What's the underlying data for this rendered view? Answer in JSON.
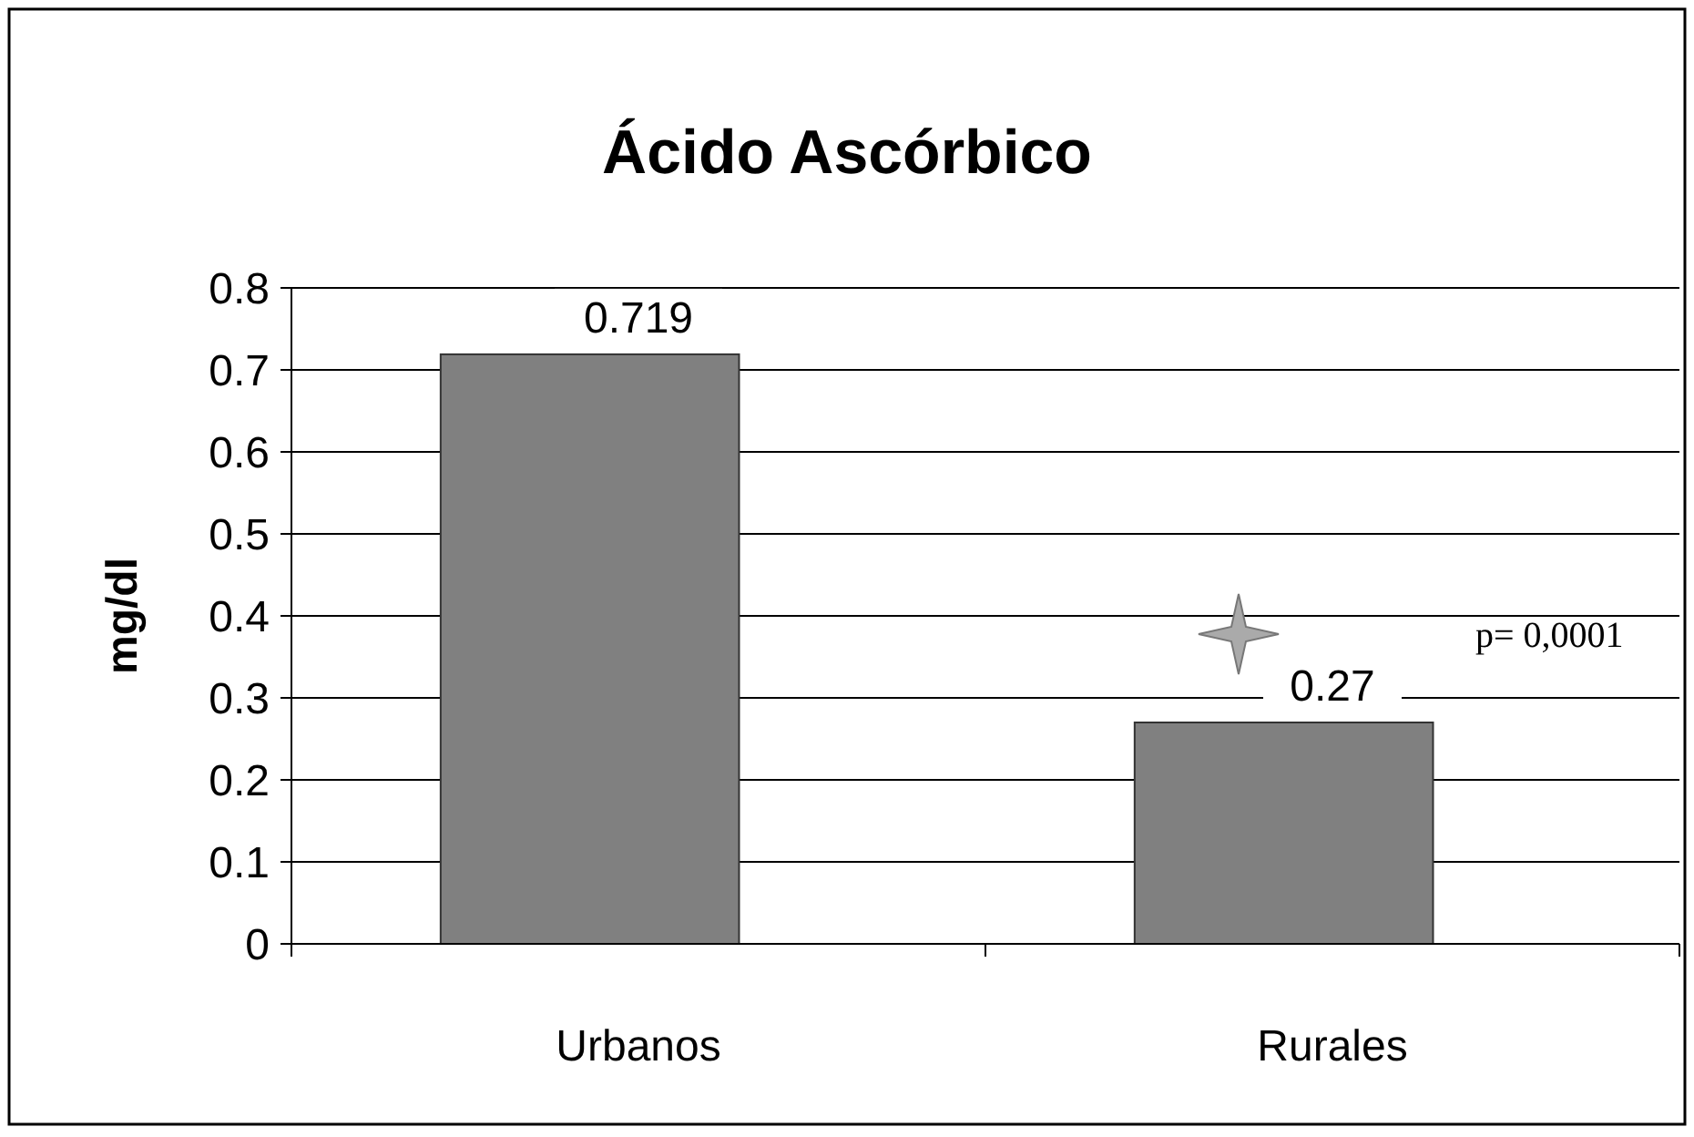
{
  "chart_data": {
    "type": "bar",
    "title": "Ácido Ascórbico",
    "ylabel": "mg/dl",
    "categories": [
      "Urbanos",
      "Rurales"
    ],
    "values": [
      0.719,
      0.27
    ],
    "color": "#808080",
    "ylim": [
      0,
      0.8
    ],
    "yticks": [
      0,
      0.1,
      0.2,
      0.3,
      0.4,
      0.5,
      0.6,
      0.7,
      0.8
    ],
    "grid": "y",
    "data_labels": true,
    "annotations": [
      "p= 0,0001"
    ]
  }
}
